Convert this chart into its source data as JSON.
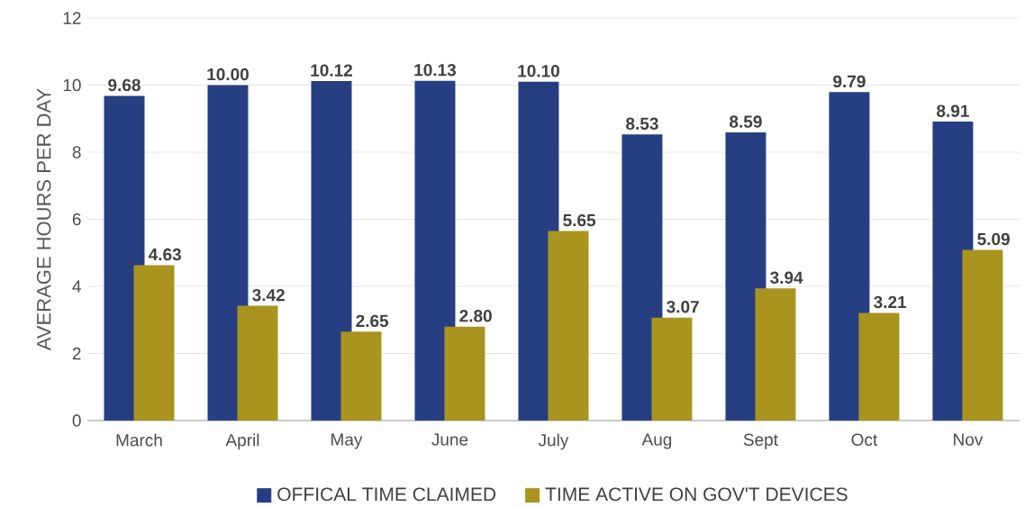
{
  "chart_data": {
    "type": "bar",
    "categories": [
      "March",
      "April",
      "May",
      "June",
      "July",
      "Aug",
      "Sept",
      "Oct",
      "Nov"
    ],
    "series": [
      {
        "name": "OFFICAL TIME CLAIMED",
        "color": "#273f82",
        "values": [
          9.68,
          10.0,
          10.12,
          10.13,
          10.1,
          8.53,
          8.59,
          9.79,
          8.91
        ],
        "value_labels": [
          "9.68",
          "10.00",
          "10.12",
          "10.13",
          "10.10",
          "8.53",
          "8.59",
          "9.79",
          "8.91"
        ]
      },
      {
        "name": "TIME ACTIVE ON GOV'T DEVICES",
        "color": "#a8941e",
        "values": [
          4.63,
          3.42,
          2.65,
          2.8,
          5.65,
          3.07,
          3.94,
          3.21,
          5.09
        ],
        "value_labels": [
          "4.63",
          "3.42",
          "2.65",
          "2.80",
          "5.65",
          "3.07",
          "3.94",
          "3.21",
          "5.09"
        ]
      }
    ],
    "ylabel": "AVERAGE  HOURS PER DAY",
    "ylim": [
      0,
      12
    ],
    "yticks": [
      0,
      2,
      4,
      6,
      8,
      10,
      12
    ],
    "grid": "y",
    "legend": "bottom"
  }
}
